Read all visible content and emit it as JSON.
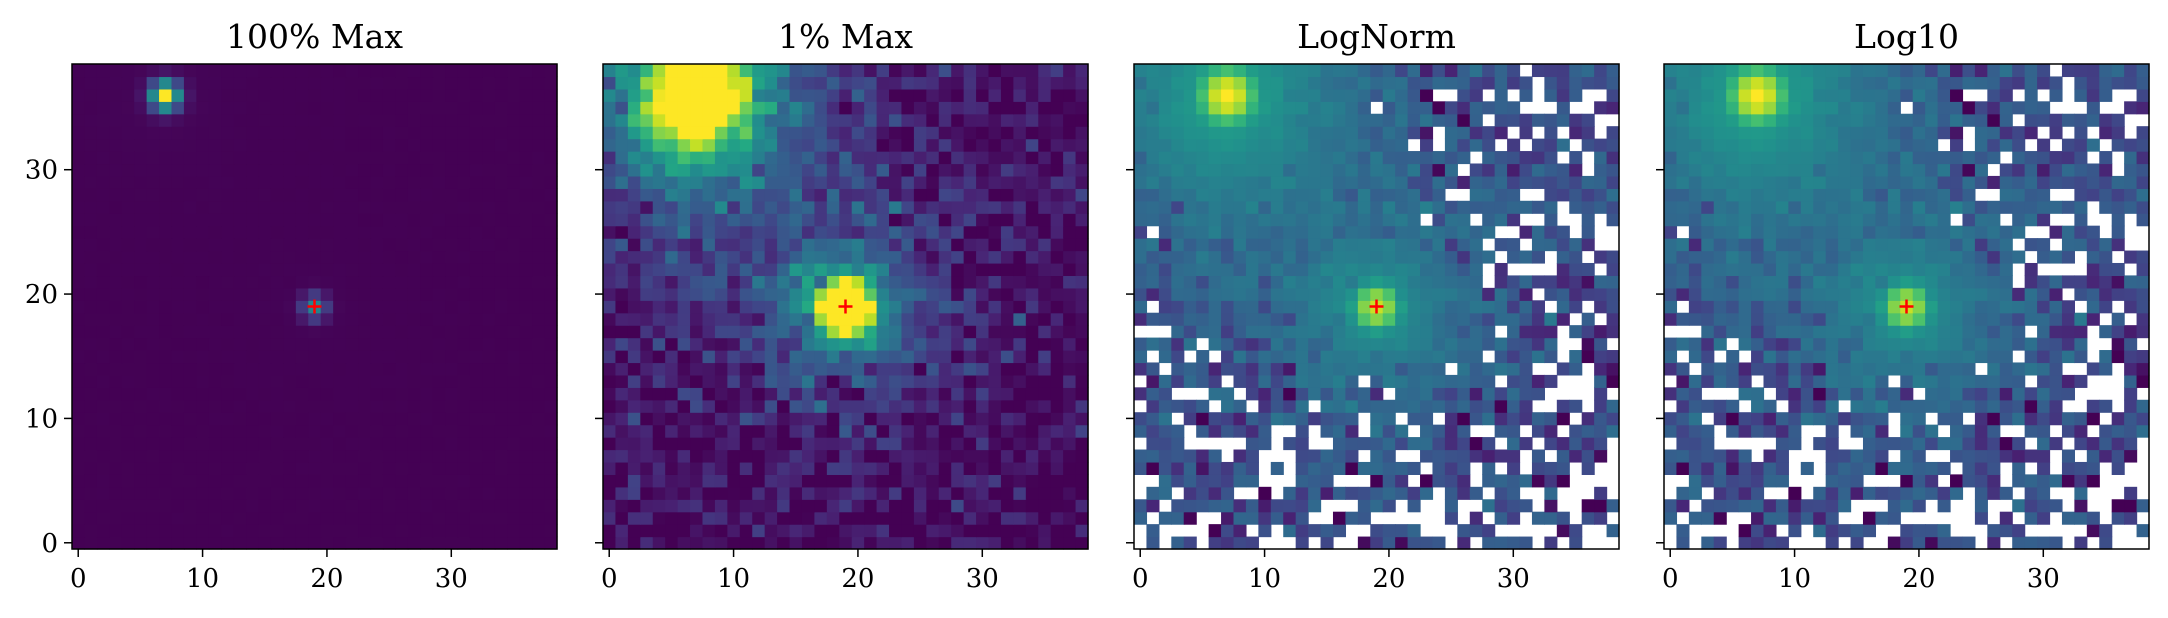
{
  "chart_data": [
    {
      "type": "heatmap",
      "title": "100% Max",
      "xlim": [
        -0.5,
        38.5
      ],
      "ylim": [
        -0.5,
        38.5
      ],
      "xticks": [
        0,
        10,
        20,
        30
      ],
      "yticks": [
        0,
        10,
        20,
        30
      ],
      "show_y_tick_labels": true,
      "colormap": "viridis",
      "scale": "linear",
      "normalization": "full maximum",
      "sources": [
        {
          "x": 7,
          "y": 36,
          "peak": 1.0,
          "sigma": 0.8
        },
        {
          "x": 19,
          "y": 19,
          "peak": 0.45,
          "sigma": 0.7
        }
      ],
      "marker": {
        "symbol": "+",
        "x": 19,
        "y": 19,
        "color": "#ff0000"
      }
    },
    {
      "type": "heatmap",
      "title": "1% Max",
      "xlim": [
        -0.5,
        38.5
      ],
      "ylim": [
        -0.5,
        38.5
      ],
      "xticks": [
        0,
        10,
        20,
        30
      ],
      "yticks": [
        0,
        10,
        20,
        30
      ],
      "show_y_tick_labels": false,
      "colormap": "viridis",
      "scale": "linear",
      "normalization": "clipped at 1% of maximum",
      "sources": [
        {
          "x": 7,
          "y": 36,
          "peak": 1.0,
          "sigma": 0.8
        },
        {
          "x": 19,
          "y": 19,
          "peak": 0.45,
          "sigma": 0.7
        }
      ],
      "marker": {
        "symbol": "+",
        "x": 19,
        "y": 19,
        "color": "#ff0000"
      }
    },
    {
      "type": "heatmap",
      "title": "LogNorm",
      "xlim": [
        -0.5,
        38.5
      ],
      "ylim": [
        -0.5,
        38.5
      ],
      "xticks": [
        0,
        10,
        20,
        30
      ],
      "yticks": [
        0,
        10,
        20,
        30
      ],
      "show_y_tick_labels": false,
      "colormap": "viridis",
      "scale": "log",
      "masked_color": "#ffffff",
      "sources": [
        {
          "x": 7,
          "y": 36,
          "peak": 1.0,
          "sigma": 0.8
        },
        {
          "x": 19,
          "y": 19,
          "peak": 0.45,
          "sigma": 0.7
        }
      ],
      "marker": {
        "symbol": "+",
        "x": 19,
        "y": 19,
        "color": "#ff0000"
      }
    },
    {
      "type": "heatmap",
      "title": "Log10",
      "xlim": [
        -0.5,
        38.5
      ],
      "ylim": [
        -0.5,
        38.5
      ],
      "xticks": [
        0,
        10,
        20,
        30
      ],
      "yticks": [
        0,
        10,
        20,
        30
      ],
      "show_y_tick_labels": false,
      "colormap": "viridis",
      "scale": "log10",
      "masked_color": "#ffffff",
      "sources": [
        {
          "x": 7,
          "y": 36,
          "peak": 1.0,
          "sigma": 0.8
        },
        {
          "x": 19,
          "y": 19,
          "peak": 0.45,
          "sigma": 0.7
        }
      ],
      "marker": {
        "symbol": "+",
        "x": 19,
        "y": 19,
        "color": "#ff0000"
      }
    }
  ]
}
